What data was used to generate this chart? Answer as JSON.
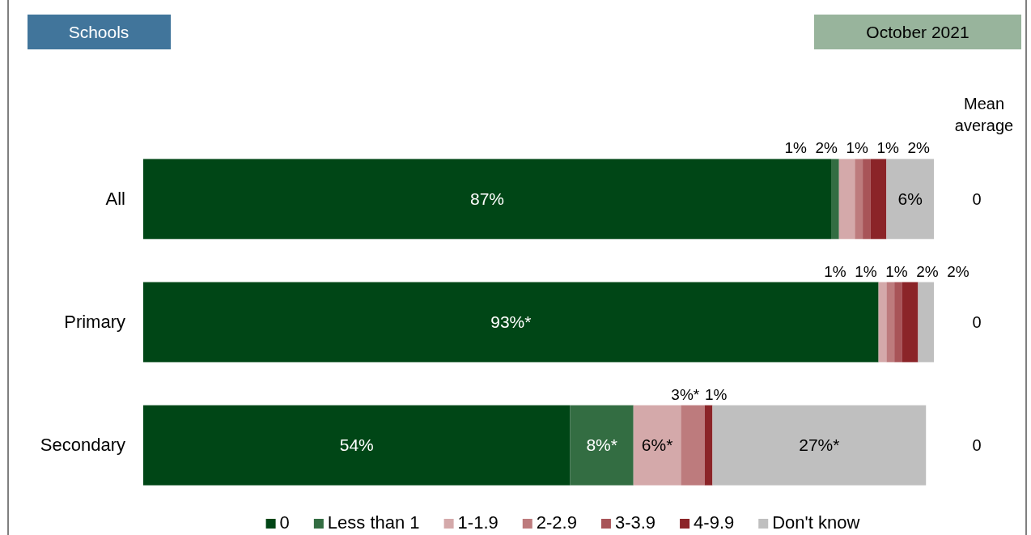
{
  "chart_data": {
    "type": "bar",
    "orientation": "horizontal",
    "stacked": true,
    "title": "Schools",
    "subtitle": "October 2021",
    "categories": [
      "All",
      "Primary",
      "Secondary"
    ],
    "series": [
      {
        "name": "0",
        "color": "#004616",
        "values": [
          87,
          93,
          54
        ],
        "value_labels": [
          "87%",
          "93%*",
          "54%"
        ]
      },
      {
        "name": "Less than 1",
        "color": "#336d42",
        "values": [
          1,
          0,
          8
        ],
        "value_labels": [
          "1%",
          null,
          "8%*"
        ]
      },
      {
        "name": "1-1.9",
        "color": "#d4a9aa",
        "values": [
          2,
          1,
          6
        ],
        "value_labels": [
          "2%",
          "1%",
          "6%*"
        ]
      },
      {
        "name": "2-2.9",
        "color": "#bd7b7d",
        "values": [
          1,
          1,
          3
        ],
        "value_labels": [
          "1%",
          "1%",
          "3%*"
        ]
      },
      {
        "name": "3-3.9",
        "color": "#a85458",
        "values": [
          1,
          1,
          0
        ],
        "value_labels": [
          "1%",
          "1%",
          null
        ]
      },
      {
        "name": "4-9.9",
        "color": "#8b2428",
        "values": [
          2,
          2,
          1
        ],
        "value_labels": [
          "2%",
          "2%",
          "1%"
        ]
      },
      {
        "name": "Don't know",
        "color": "#bfbfbf",
        "values": [
          6,
          2,
          27
        ],
        "value_labels": [
          "6%",
          "2%",
          "27%*"
        ]
      }
    ],
    "xlim": [
      0,
      100
    ],
    "legend": "bottom",
    "annotations": [
      "Mean average",
      "0",
      "0",
      "0"
    ]
  }
}
